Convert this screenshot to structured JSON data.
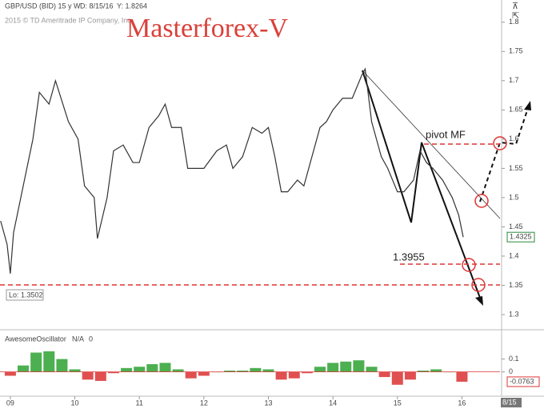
{
  "header": {
    "symbol": "GBP/USD (BID) 15 y W",
    "date": "D: 8/15/16",
    "cursor": "Y: 1.8264",
    "copyright": "2015 © TD Ameritrade IP Company, Inc.",
    "date_tag": "8/15"
  },
  "chart_data": [
    {
      "type": "line",
      "title": "Masterforex-V",
      "annotations": {
        "pivot": "pivot MF",
        "target": "1.3955",
        "low": "Lo: 1.3502"
      },
      "x": [
        2008.85,
        2008.95,
        2009.0,
        2009.05,
        2009.2,
        2009.35,
        2009.45,
        2009.6,
        2009.7,
        2009.9,
        2010.05,
        2010.15,
        2010.3,
        2010.35,
        2010.5,
        2010.6,
        2010.75,
        2010.9,
        2011.0,
        2011.15,
        2011.3,
        2011.4,
        2011.5,
        2011.65,
        2011.75,
        2011.9,
        2012.0,
        2012.2,
        2012.35,
        2012.45,
        2012.6,
        2012.75,
        2012.9,
        2013.0,
        2013.1,
        2013.2,
        2013.3,
        2013.45,
        2013.55,
        2013.65,
        2013.8,
        2013.9,
        2014.0,
        2014.15,
        2014.3,
        2014.45,
        2014.5,
        2014.6,
        2014.75,
        2014.85,
        2015.0,
        2015.1,
        2015.25,
        2015.35,
        2015.45,
        2015.55,
        2015.7,
        2015.85,
        2015.95,
        2016.02
      ],
      "series": [
        {
          "name": "GBP/USD",
          "color": "#333333",
          "values": [
            1.46,
            1.42,
            1.37,
            1.44,
            1.52,
            1.6,
            1.68,
            1.66,
            1.7,
            1.63,
            1.6,
            1.52,
            1.5,
            1.43,
            1.5,
            1.58,
            1.59,
            1.56,
            1.56,
            1.62,
            1.64,
            1.66,
            1.62,
            1.62,
            1.55,
            1.55,
            1.55,
            1.58,
            1.59,
            1.55,
            1.57,
            1.62,
            1.61,
            1.62,
            1.57,
            1.51,
            1.51,
            1.53,
            1.52,
            1.56,
            1.62,
            1.63,
            1.65,
            1.67,
            1.67,
            1.71,
            1.72,
            1.63,
            1.57,
            1.55,
            1.51,
            1.51,
            1.53,
            1.58,
            1.56,
            1.55,
            1.53,
            1.5,
            1.47,
            1.4325
          ]
        }
      ],
      "xlim": [
        2008.84,
        2016.59
      ],
      "ylim": [
        1.274,
        1.838
      ],
      "xticks": [
        {
          "value": 2009,
          "label": "09"
        },
        {
          "value": 2010,
          "label": "10"
        },
        {
          "value": 2011,
          "label": "11"
        },
        {
          "value": 2012,
          "label": "12"
        },
        {
          "value": 2013,
          "label": "13"
        },
        {
          "value": 2014,
          "label": "14"
        },
        {
          "value": 2015,
          "label": "15"
        },
        {
          "value": 2016,
          "label": "16"
        }
      ],
      "yticks": [
        1.3,
        1.35,
        1.4,
        1.45,
        1.5,
        1.55,
        1.6,
        1.65,
        1.7,
        1.75,
        1.8
      ]
    },
    {
      "type": "bar",
      "title": "AwesomeOscillator",
      "params": [
        "N/A",
        "0"
      ],
      "positive_color": "#4caf50",
      "negative_color": "#e05050",
      "x": [
        2009.0,
        2009.2,
        2009.4,
        2009.6,
        2009.8,
        2010.0,
        2010.2,
        2010.4,
        2010.6,
        2010.8,
        2011.0,
        2011.2,
        2011.4,
        2011.6,
        2011.8,
        2012.0,
        2012.2,
        2012.4,
        2012.6,
        2012.8,
        2013.0,
        2013.2,
        2013.4,
        2013.6,
        2013.8,
        2014.0,
        2014.2,
        2014.4,
        2014.6,
        2014.8,
        2015.0,
        2015.2,
        2015.4,
        2015.6,
        2015.8,
        2016.0
      ],
      "values": [
        -0.03,
        0.05,
        0.15,
        0.16,
        0.1,
        0.02,
        -0.06,
        -0.07,
        -0.01,
        0.03,
        0.04,
        0.06,
        0.07,
        0.02,
        -0.05,
        -0.03,
        0.0,
        0.01,
        0.01,
        0.03,
        0.02,
        -0.06,
        -0.05,
        -0.01,
        0.04,
        0.07,
        0.08,
        0.09,
        0.04,
        -0.04,
        -0.1,
        -0.06,
        0.01,
        0.02,
        0.0,
        -0.0763
      ],
      "xlim": [
        2008.84,
        2016.59
      ],
      "ylim": [
        -0.17,
        0.29
      ],
      "yticks": [
        0.1,
        0
      ]
    }
  ]
}
